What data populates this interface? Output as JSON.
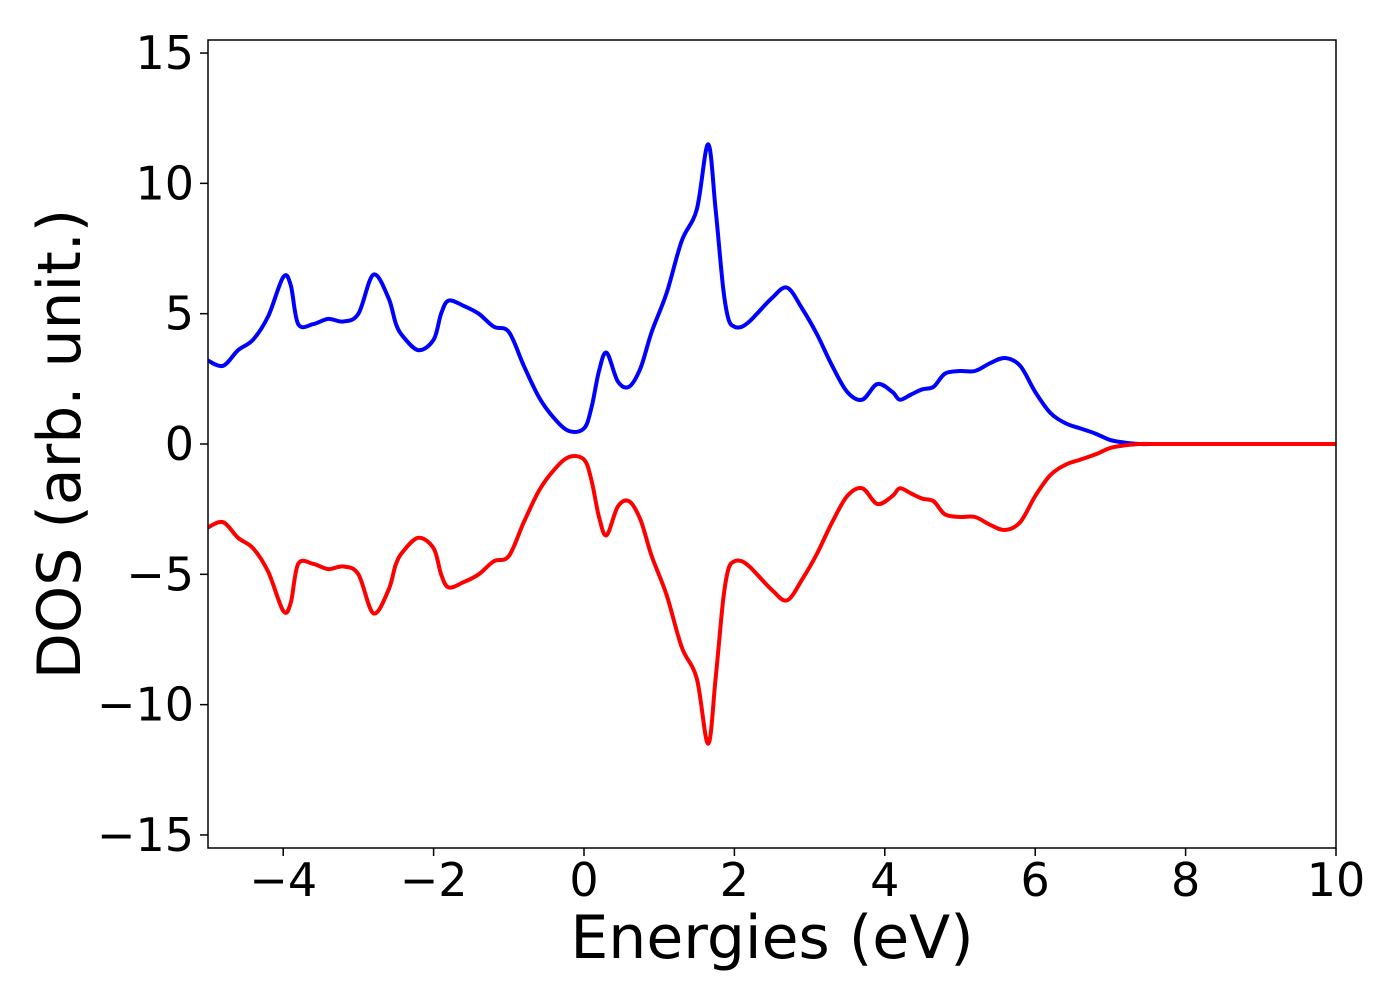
{
  "chart_data": {
    "type": "line",
    "title": "",
    "xlabel": "Energies (eV)",
    "ylabel": "DOS (arb. unit.)",
    "xlim": [
      -5,
      10
    ],
    "ylim": [
      -15.5,
      15.5
    ],
    "grid": false,
    "legend": "none",
    "x_ticks": [
      -4,
      -2,
      0,
      2,
      4,
      6,
      8,
      10
    ],
    "x_tick_labels": [
      "−4",
      "−2",
      "0",
      "2",
      "4",
      "6",
      "8",
      "10"
    ],
    "y_ticks": [
      15,
      10,
      5,
      0,
      -5,
      -10,
      -15
    ],
    "y_tick_labels": [
      "15",
      "10",
      "5",
      "0",
      "−5",
      "−10",
      "−15"
    ],
    "series": [
      {
        "color": "#0000ff",
        "x": [
          -5.0,
          -4.8,
          -4.6,
          -4.4,
          -4.2,
          -4.0,
          -3.9,
          -3.8,
          -3.6,
          -3.4,
          -3.2,
          -3.0,
          -2.8,
          -2.6,
          -2.5,
          -2.4,
          -2.2,
          -2.0,
          -1.9,
          -1.8,
          -1.6,
          -1.4,
          -1.2,
          -1.0,
          -0.8,
          -0.6,
          -0.4,
          -0.2,
          0.0,
          0.1,
          0.2,
          0.3,
          0.45,
          0.6,
          0.75,
          0.9,
          1.1,
          1.3,
          1.5,
          1.65,
          1.75,
          1.85,
          1.92,
          2.0,
          2.1,
          2.2,
          2.3,
          2.5,
          2.7,
          2.9,
          3.1,
          3.3,
          3.5,
          3.7,
          3.9,
          4.1,
          4.2,
          4.35,
          4.5,
          4.65,
          4.8,
          5.0,
          5.2,
          5.4,
          5.6,
          5.8,
          6.0,
          6.2,
          6.4,
          6.6,
          6.8,
          7.0,
          7.2,
          7.4,
          7.6,
          7.8,
          8.0,
          8.2,
          8.5,
          9.0,
          10.0
        ],
        "y": [
          3.2,
          3.0,
          3.6,
          4.0,
          4.9,
          6.4,
          6.1,
          4.6,
          4.6,
          4.8,
          4.7,
          5.0,
          6.5,
          5.6,
          4.6,
          4.1,
          3.6,
          4.0,
          5.0,
          5.5,
          5.3,
          5.0,
          4.5,
          4.3,
          3.0,
          1.8,
          1.0,
          0.5,
          0.6,
          1.4,
          2.8,
          3.5,
          2.4,
          2.2,
          2.9,
          4.3,
          5.8,
          7.8,
          9.0,
          11.5,
          9.0,
          6.0,
          4.8,
          4.5,
          4.5,
          4.7,
          5.0,
          5.6,
          6.0,
          5.2,
          4.2,
          3.0,
          2.0,
          1.7,
          2.3,
          2.0,
          1.7,
          1.9,
          2.1,
          2.2,
          2.7,
          2.8,
          2.8,
          3.1,
          3.3,
          3.0,
          2.0,
          1.2,
          0.8,
          0.6,
          0.4,
          0.15,
          0.05,
          0.0,
          0.0,
          0.0,
          0.0,
          0.0,
          0.0,
          0.0,
          0.0
        ]
      },
      {
        "color": "#ff0000",
        "x": [
          -5.0,
          -4.8,
          -4.6,
          -4.4,
          -4.2,
          -4.0,
          -3.9,
          -3.8,
          -3.6,
          -3.4,
          -3.2,
          -3.0,
          -2.8,
          -2.6,
          -2.5,
          -2.4,
          -2.2,
          -2.0,
          -1.9,
          -1.8,
          -1.6,
          -1.4,
          -1.2,
          -1.0,
          -0.8,
          -0.6,
          -0.4,
          -0.2,
          0.0,
          0.1,
          0.2,
          0.3,
          0.45,
          0.6,
          0.75,
          0.9,
          1.1,
          1.3,
          1.5,
          1.65,
          1.75,
          1.85,
          1.92,
          2.0,
          2.1,
          2.2,
          2.3,
          2.5,
          2.7,
          2.9,
          3.1,
          3.3,
          3.5,
          3.7,
          3.9,
          4.1,
          4.2,
          4.35,
          4.5,
          4.65,
          4.8,
          5.0,
          5.2,
          5.4,
          5.6,
          5.8,
          6.0,
          6.2,
          6.4,
          6.6,
          6.8,
          7.0,
          7.2,
          7.4,
          7.6,
          7.8,
          8.0,
          8.2,
          8.5,
          9.0,
          10.0
        ],
        "y": [
          -3.2,
          -3.0,
          -3.6,
          -4.0,
          -4.9,
          -6.4,
          -6.1,
          -4.6,
          -4.6,
          -4.8,
          -4.7,
          -5.0,
          -6.5,
          -5.6,
          -4.6,
          -4.1,
          -3.6,
          -4.0,
          -5.0,
          -5.5,
          -5.3,
          -5.0,
          -4.5,
          -4.3,
          -3.0,
          -1.8,
          -1.0,
          -0.5,
          -0.6,
          -1.4,
          -2.8,
          -3.5,
          -2.4,
          -2.2,
          -2.9,
          -4.3,
          -5.8,
          -7.8,
          -9.0,
          -11.5,
          -9.0,
          -6.0,
          -4.8,
          -4.5,
          -4.5,
          -4.7,
          -5.0,
          -5.6,
          -6.0,
          -5.2,
          -4.2,
          -3.0,
          -2.0,
          -1.7,
          -2.3,
          -2.0,
          -1.7,
          -1.9,
          -2.1,
          -2.2,
          -2.7,
          -2.8,
          -2.8,
          -3.1,
          -3.3,
          -3.0,
          -2.0,
          -1.2,
          -0.8,
          -0.6,
          -0.4,
          -0.15,
          -0.05,
          0.0,
          0.0,
          0.0,
          0.0,
          0.0,
          0.0,
          0.0,
          0.0
        ]
      }
    ]
  }
}
